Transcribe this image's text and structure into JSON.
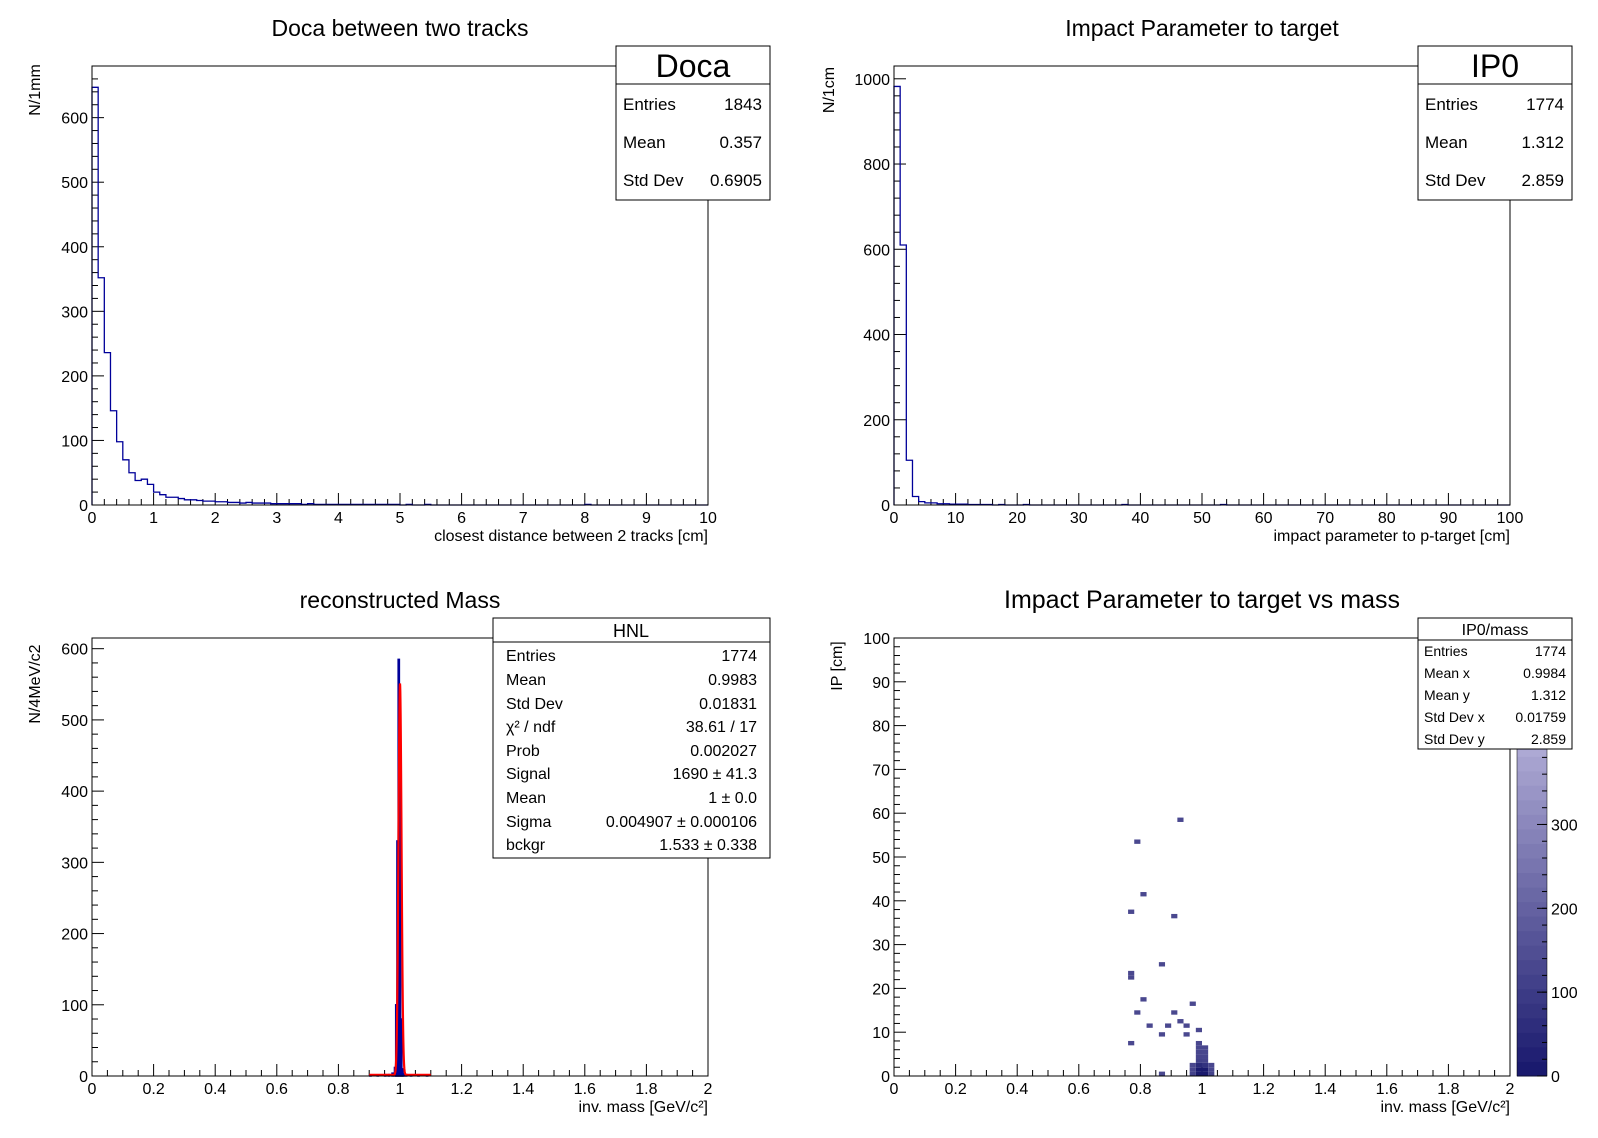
{
  "chart_data": [
    {
      "id": "doca",
      "type": "bar",
      "title": "Doca between two tracks",
      "xlabel": "closest distance between 2 tracks   [cm]",
      "ylabel": "N/1mm",
      "xlim": [
        0,
        10
      ],
      "ylim": [
        0,
        680
      ],
      "xticks": [
        0,
        1,
        2,
        3,
        4,
        5,
        6,
        7,
        8,
        9,
        10
      ],
      "yticks": [
        0,
        100,
        200,
        300,
        400,
        500,
        600
      ],
      "bin_width": 0.1,
      "values": [
        647,
        352,
        236,
        146,
        98,
        70,
        50,
        38,
        40,
        32,
        20,
        16,
        12,
        12,
        10,
        8,
        8,
        7,
        6,
        6,
        5,
        5,
        4,
        4,
        3,
        4,
        3,
        3,
        3,
        2,
        2,
        2,
        2,
        2,
        1,
        2,
        1,
        1,
        1,
        1,
        1,
        1,
        1,
        1,
        1,
        1,
        1,
        1,
        1,
        1,
        0,
        1,
        0,
        0,
        1,
        0,
        0,
        0,
        0,
        0,
        0,
        0,
        0,
        0,
        0,
        0,
        0,
        0,
        0,
        0,
        0,
        0,
        0,
        0,
        0,
        0,
        0,
        0,
        0,
        0,
        1,
        0,
        0,
        0,
        0,
        0,
        0,
        0,
        0,
        0,
        0,
        0,
        0,
        0,
        0,
        0,
        0,
        0,
        0,
        0
      ],
      "series": [
        {
          "name": "Doca",
          "color": "#000099"
        }
      ],
      "stats": {
        "name": "Doca",
        "rows": [
          {
            "label": "Entries",
            "value": "1843"
          },
          {
            "label": "Mean",
            "value": "0.357"
          },
          {
            "label": "Std Dev",
            "value": "0.6905"
          }
        ]
      }
    },
    {
      "id": "ip0",
      "type": "bar",
      "title": "Impact Parameter to target",
      "xlabel": "impact parameter to p-target   [cm]",
      "ylabel": "N/1cm",
      "xlim": [
        0,
        100
      ],
      "ylim": [
        0,
        1030
      ],
      "xticks": [
        0,
        10,
        20,
        30,
        40,
        50,
        60,
        70,
        80,
        90,
        100
      ],
      "yticks": [
        0,
        200,
        400,
        600,
        800,
        1000
      ],
      "bin_width": 1,
      "values": [
        982,
        610,
        105,
        20,
        8,
        5,
        5,
        3,
        3,
        2,
        2,
        2,
        1,
        1,
        1,
        1,
        0,
        1,
        0,
        0,
        0,
        1,
        0,
        0,
        0,
        0,
        0,
        0,
        0,
        0,
        0,
        0,
        0,
        0,
        0,
        0,
        0,
        1,
        0,
        0,
        0,
        0,
        0,
        0,
        0,
        0,
        0,
        0,
        0,
        0,
        0,
        0,
        0,
        1,
        0,
        0,
        0,
        0,
        0,
        0,
        0,
        0,
        0,
        0,
        0,
        0,
        0,
        0,
        0,
        0,
        0,
        0,
        0,
        0,
        0,
        0,
        0,
        0,
        0,
        0,
        0,
        0,
        0,
        0,
        0,
        0,
        0,
        0,
        0,
        0,
        0,
        0,
        0,
        0,
        0,
        0,
        0,
        0,
        0,
        0
      ],
      "series": [
        {
          "name": "IP0",
          "color": "#000099"
        }
      ],
      "stats": {
        "name": "IP0",
        "rows": [
          {
            "label": "Entries",
            "value": "1774"
          },
          {
            "label": "Mean",
            "value": "1.312"
          },
          {
            "label": "Std Dev",
            "value": "2.859"
          }
        ]
      }
    },
    {
      "id": "hnl",
      "type": "bar",
      "title": "reconstructed Mass",
      "xlabel": "inv. mass  [GeV/c²]",
      "ylabel": "N/4MeV/c2",
      "xlim": [
        0,
        2
      ],
      "ylim": [
        0,
        615
      ],
      "xticks": [
        0,
        0.2,
        0.4,
        0.6,
        0.8,
        1,
        1.2,
        1.4,
        1.6,
        1.8,
        2
      ],
      "yticks": [
        0,
        100,
        200,
        300,
        400,
        500,
        600
      ],
      "bin_width": 0.004,
      "bins": [
        {
          "x": 0.904,
          "y": 1
        },
        {
          "x": 0.928,
          "y": 1
        },
        {
          "x": 0.952,
          "y": 2
        },
        {
          "x": 0.964,
          "y": 2
        },
        {
          "x": 0.976,
          "y": 4
        },
        {
          "x": 0.984,
          "y": 12
        },
        {
          "x": 0.988,
          "y": 100
        },
        {
          "x": 0.992,
          "y": 330
        },
        {
          "x": 0.996,
          "y": 585
        },
        {
          "x": 1.0,
          "y": 470
        },
        {
          "x": 1.004,
          "y": 80
        },
        {
          "x": 1.008,
          "y": 10
        },
        {
          "x": 1.012,
          "y": 3
        },
        {
          "x": 1.02,
          "y": 2
        },
        {
          "x": 1.036,
          "y": 1
        },
        {
          "x": 1.06,
          "y": 1
        },
        {
          "x": 1.088,
          "y": 1
        }
      ],
      "fit": {
        "signal": 1690,
        "mean": 1.0,
        "sigma": 0.004907,
        "background": 1.533,
        "color": "#ff0000"
      },
      "series": [
        {
          "name": "HNL",
          "color": "#000099"
        }
      ],
      "stats": {
        "name": "HNL",
        "rows": [
          {
            "label": "Entries",
            "value": "1774"
          },
          {
            "label": "Mean",
            "value": "0.9983"
          },
          {
            "label": "Std Dev",
            "value": "0.01831"
          },
          {
            "label": "χ² / ndf",
            "value": "38.61 / 17"
          },
          {
            "label": "Prob",
            "value": "0.002027"
          },
          {
            "label": "Signal",
            "value": "1690 ± 41.3"
          },
          {
            "label": "Mean",
            "value": "1 ± 0.0"
          },
          {
            "label": "Sigma",
            "value": "0.004907 ± 0.000106"
          },
          {
            "label": "bckgr",
            "value": "1.533 ± 0.338"
          }
        ]
      }
    },
    {
      "id": "ip0mass",
      "type": "heatmap",
      "title": "Impact Parameter to target vs mass",
      "xlabel": "inv. mass  [GeV/c²]",
      "ylabel": "IP [cm]",
      "xlim": [
        0,
        2
      ],
      "ylim": [
        0,
        100
      ],
      "xticks": [
        0,
        0.2,
        0.4,
        0.6,
        0.8,
        1,
        1.2,
        1.4,
        1.6,
        1.8,
        2
      ],
      "yticks": [
        0,
        10,
        20,
        30,
        40,
        50,
        60,
        70,
        80,
        90,
        100
      ],
      "cell": {
        "dx": 0.02,
        "dy": 1
      },
      "zlim": [
        0,
        520
      ],
      "zticks": [
        0,
        100,
        200,
        300
      ],
      "zticks_cut": [
        "0",
        "0"
      ],
      "cells": [
        {
          "x": 0.92,
          "y": 58,
          "z": 1
        },
        {
          "x": 0.78,
          "y": 53,
          "z": 1
        },
        {
          "x": 0.8,
          "y": 41,
          "z": 1
        },
        {
          "x": 0.76,
          "y": 37,
          "z": 1
        },
        {
          "x": 0.9,
          "y": 36,
          "z": 1
        },
        {
          "x": 0.86,
          "y": 25,
          "z": 1
        },
        {
          "x": 0.76,
          "y": 22,
          "z": 2
        },
        {
          "x": 0.76,
          "y": 23,
          "z": 1
        },
        {
          "x": 0.8,
          "y": 17,
          "z": 1
        },
        {
          "x": 0.96,
          "y": 16,
          "z": 1
        },
        {
          "x": 0.78,
          "y": 14,
          "z": 1
        },
        {
          "x": 0.9,
          "y": 14,
          "z": 1
        },
        {
          "x": 0.92,
          "y": 12,
          "z": 1
        },
        {
          "x": 0.82,
          "y": 11,
          "z": 1
        },
        {
          "x": 0.88,
          "y": 11,
          "z": 1
        },
        {
          "x": 0.94,
          "y": 11,
          "z": 1
        },
        {
          "x": 0.86,
          "y": 9,
          "z": 1
        },
        {
          "x": 0.94,
          "y": 9,
          "z": 1
        },
        {
          "x": 0.98,
          "y": 10,
          "z": 1
        },
        {
          "x": 0.76,
          "y": 7,
          "z": 1
        },
        {
          "x": 0.98,
          "y": 7,
          "z": 2
        },
        {
          "x": 0.98,
          "y": 6,
          "z": 3
        },
        {
          "x": 1.0,
          "y": 6,
          "z": 2
        },
        {
          "x": 0.98,
          "y": 5,
          "z": 4
        },
        {
          "x": 1.0,
          "y": 5,
          "z": 3
        },
        {
          "x": 0.98,
          "y": 4,
          "z": 6
        },
        {
          "x": 1.0,
          "y": 4,
          "z": 5
        },
        {
          "x": 0.98,
          "y": 3,
          "z": 10
        },
        {
          "x": 1.0,
          "y": 3,
          "z": 8
        },
        {
          "x": 0.96,
          "y": 2,
          "z": 2
        },
        {
          "x": 0.98,
          "y": 2,
          "z": 40
        },
        {
          "x": 1.0,
          "y": 2,
          "z": 30
        },
        {
          "x": 1.02,
          "y": 2,
          "z": 2
        },
        {
          "x": 0.96,
          "y": 1,
          "z": 6
        },
        {
          "x": 0.98,
          "y": 1,
          "z": 200
        },
        {
          "x": 1.0,
          "y": 1,
          "z": 180
        },
        {
          "x": 1.02,
          "y": 1,
          "z": 5
        },
        {
          "x": 0.96,
          "y": 0,
          "z": 10
        },
        {
          "x": 0.98,
          "y": 0,
          "z": 520
        },
        {
          "x": 1.0,
          "y": 0,
          "z": 480
        },
        {
          "x": 1.02,
          "y": 0,
          "z": 8
        },
        {
          "x": 0.86,
          "y": 0,
          "z": 1
        }
      ],
      "colors": {
        "low": "#dcd6f4",
        "high": "#1a1a6e"
      },
      "stats": {
        "name": "IP0/mass",
        "rows": [
          {
            "label": "Entries",
            "value": "1774"
          },
          {
            "label": "Mean x",
            "value": "0.9984"
          },
          {
            "label": "Mean y",
            "value": "1.312"
          },
          {
            "label": "Std Dev x",
            "value": "0.01759"
          },
          {
            "label": "Std Dev y",
            "value": "2.859"
          }
        ]
      }
    }
  ]
}
